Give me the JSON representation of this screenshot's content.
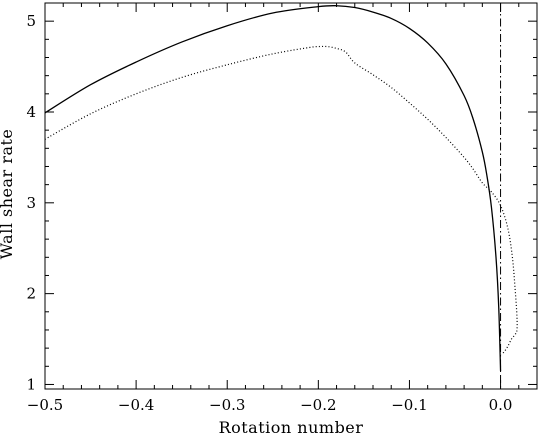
{
  "chart_data": {
    "type": "line",
    "title": "",
    "xlabel": "Rotation number",
    "ylabel": "Wall shear rate",
    "xlim": [
      -0.5,
      0.04
    ],
    "ylim": [
      0.95,
      5.2
    ],
    "grid": false,
    "legend": "none",
    "x_ticks": [
      -0.5,
      -0.4,
      -0.3,
      -0.2,
      -0.1,
      0.0
    ],
    "x_tick_labels": [
      "−0.5",
      "−0.4",
      "−0.3",
      "−0.2",
      "−0.1",
      "0.0"
    ],
    "y_ticks": [
      1,
      2,
      3,
      4,
      5
    ],
    "y_tick_labels": [
      "1",
      "2",
      "3",
      "4",
      "5"
    ],
    "reference_line": {
      "x": 0.0,
      "style": "dash-dot"
    },
    "series": [
      {
        "style": "solid",
        "x": [
          -0.5,
          -0.45,
          -0.4,
          -0.35,
          -0.3,
          -0.25,
          -0.2,
          -0.18,
          -0.16,
          -0.14,
          -0.12,
          -0.1,
          -0.08,
          -0.06,
          -0.04,
          -0.03,
          -0.02,
          -0.015,
          -0.01,
          -0.005,
          -0.002,
          0.0
        ],
        "y": [
          3.99,
          4.3,
          4.55,
          4.77,
          4.95,
          5.09,
          5.16,
          5.17,
          5.15,
          5.1,
          5.03,
          4.92,
          4.76,
          4.53,
          4.18,
          3.92,
          3.56,
          3.3,
          2.95,
          2.4,
          1.85,
          1.15
        ]
      },
      {
        "style": "dotted",
        "x": [
          -0.5,
          -0.45,
          -0.4,
          -0.35,
          -0.3,
          -0.25,
          -0.21,
          -0.2,
          -0.19,
          -0.18,
          -0.17,
          -0.16,
          -0.14,
          -0.12,
          -0.1,
          -0.08,
          -0.06,
          -0.04,
          -0.03,
          -0.02,
          -0.01,
          0.0,
          0.008,
          0.013,
          0.016,
          0.018,
          0.018,
          0.016,
          0.012,
          0.008,
          0.004,
          0.001
        ],
        "y": [
          3.7,
          3.98,
          4.2,
          4.38,
          4.52,
          4.64,
          4.71,
          4.72,
          4.72,
          4.7,
          4.66,
          4.54,
          4.41,
          4.27,
          4.1,
          3.92,
          3.72,
          3.5,
          3.37,
          3.22,
          3.12,
          2.97,
          2.72,
          2.4,
          2.05,
          1.75,
          1.6,
          1.55,
          1.5,
          1.42,
          1.36,
          1.33
        ]
      }
    ]
  }
}
